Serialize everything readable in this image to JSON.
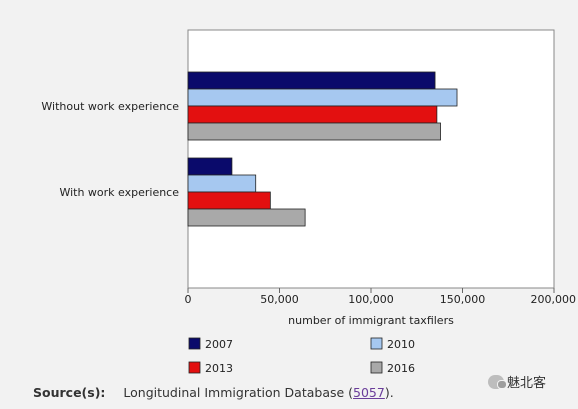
{
  "chart_data": {
    "type": "bar",
    "orientation": "horizontal",
    "categories": [
      "Without work experience",
      "With work experience"
    ],
    "series": [
      {
        "name": "2007",
        "color": "#0a0a6b",
        "values": [
          135000,
          24000
        ]
      },
      {
        "name": "2010",
        "color": "#a6c8f0",
        "values": [
          147000,
          37000
        ]
      },
      {
        "name": "2013",
        "color": "#e31010",
        "values": [
          136000,
          45000
        ]
      },
      {
        "name": "2016",
        "color": "#a9a9a9",
        "values": [
          138000,
          64000
        ]
      }
    ],
    "xlabel": "number of immigrant taxfilers",
    "xticks": [
      "0",
      "50,000",
      "100,000",
      "150,000",
      "200,000"
    ],
    "xlim": [
      0,
      200000
    ],
    "grid": false,
    "legend_position": "bottom"
  },
  "source": {
    "label": "Source(s):",
    "text": "Longitudinal Immigration Database (",
    "link": "5057",
    "end": ")."
  },
  "watermark": {
    "text": "魅北客",
    "icon": "wechat-icon"
  }
}
